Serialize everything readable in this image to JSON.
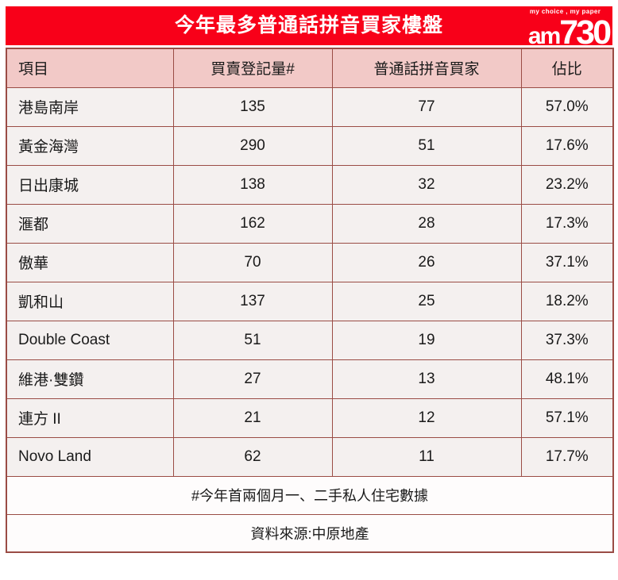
{
  "banner": {
    "title": "今年最多普通話拼音買家樓盤",
    "logo": {
      "tagline": "my choice , my paper",
      "brand_prefix": "am",
      "brand_number": "730"
    }
  },
  "table": {
    "columns": [
      "項目",
      "買賣登記量#",
      "普通話拼音買家",
      "佔比"
    ],
    "rows": [
      [
        "港島南岸",
        "135",
        "77",
        "57.0%"
      ],
      [
        "黃金海灣",
        "290",
        "51",
        "17.6%"
      ],
      [
        "日出康城",
        "138",
        "32",
        "23.2%"
      ],
      [
        "滙都",
        "162",
        "28",
        "17.3%"
      ],
      [
        "傲華",
        "70",
        "26",
        "37.1%"
      ],
      [
        "凱和山",
        "137",
        "25",
        "18.2%"
      ],
      [
        "Double Coast",
        "51",
        "19",
        "37.3%"
      ],
      [
        "維港·雙鑽",
        "27",
        "13",
        "48.1%"
      ],
      [
        "連方 II",
        "21",
        "12",
        "57.1%"
      ],
      [
        "Novo Land",
        "62",
        "11",
        "17.7%"
      ]
    ],
    "footnote": "#今年首兩個月一、二手私人住宅數據",
    "source": "資料來源:中原地產"
  },
  "colors": {
    "banner_red": "#f80019",
    "header_pink": "#f2c9c7",
    "row_bg": "#f4f0ef",
    "note_bg": "#fefcfc",
    "border_maroon": "#9a4c45",
    "title_text": "#ffffff",
    "body_text": "#1a1a1a"
  },
  "chart_data": {
    "type": "table",
    "title": "今年最多普通話拼音買家樓盤",
    "columns": [
      "項目",
      "買賣登記量#",
      "普通話拼音買家",
      "佔比"
    ],
    "records": [
      {
        "project": "港島南岸",
        "registrations": 135,
        "mandarin_pinyin_buyers": 77,
        "share_pct": 57.0
      },
      {
        "project": "黃金海灣",
        "registrations": 290,
        "mandarin_pinyin_buyers": 51,
        "share_pct": 17.6
      },
      {
        "project": "日出康城",
        "registrations": 138,
        "mandarin_pinyin_buyers": 32,
        "share_pct": 23.2
      },
      {
        "project": "滙都",
        "registrations": 162,
        "mandarin_pinyin_buyers": 28,
        "share_pct": 17.3
      },
      {
        "project": "傲華",
        "registrations": 70,
        "mandarin_pinyin_buyers": 26,
        "share_pct": 37.1
      },
      {
        "project": "凱和山",
        "registrations": 137,
        "mandarin_pinyin_buyers": 25,
        "share_pct": 18.2
      },
      {
        "project": "Double Coast",
        "registrations": 51,
        "mandarin_pinyin_buyers": 19,
        "share_pct": 37.3
      },
      {
        "project": "維港·雙鑽",
        "registrations": 27,
        "mandarin_pinyin_buyers": 13,
        "share_pct": 48.1
      },
      {
        "project": "連方 II",
        "registrations": 21,
        "mandarin_pinyin_buyers": 12,
        "share_pct": 57.1
      },
      {
        "project": "Novo Land",
        "registrations": 62,
        "mandarin_pinyin_buyers": 11,
        "share_pct": 17.7
      }
    ],
    "footnote": "#今年首兩個月一、二手私人住宅數據",
    "source": "資料來源:中原地產"
  }
}
